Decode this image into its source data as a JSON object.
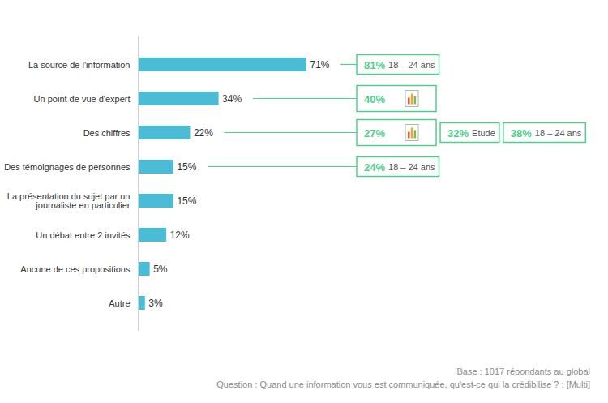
{
  "chart_data": {
    "type": "bar",
    "orientation": "horizontal",
    "categories": [
      "La source de l'information",
      "Un point de vue d'expert",
      "Des chiffres",
      "Des témoignages de personnes",
      "La présentation du sujet par un journaliste en particulier",
      "Un débat entre 2 invités",
      "Aucune de ces propositions",
      "Autre"
    ],
    "values": [
      71,
      34,
      22,
      15,
      15,
      12,
      5,
      3
    ],
    "value_labels": [
      "71%",
      "34%",
      "22%",
      "15%",
      "15%",
      "12%",
      "5%",
      "3%"
    ],
    "color": "#4bbcd5",
    "data_labels": true,
    "tick_labels": "y",
    "annotations": [
      {
        "category": "La source de l'information",
        "items": [
          {
            "value": 81,
            "label": "81%",
            "note": "18 – 24 ans"
          }
        ]
      },
      {
        "category": "Un point de vue d'expert",
        "items": [
          {
            "value": 40,
            "label": "40%"
          }
        ]
      },
      {
        "category": "Des chiffres",
        "items": [
          {
            "value": 27,
            "label": "27%"
          },
          {
            "value": 32,
            "label": "32%",
            "note": "Etude"
          },
          {
            "value": 38,
            "label": "38%",
            "note": "18 – 24 ans"
          }
        ]
      },
      {
        "category": "Des témoignages de personnes",
        "items": [
          {
            "value": 24,
            "label": "24%",
            "note": "18 – 24 ans"
          }
        ]
      }
    ],
    "footnotes": [
      "Base : 1017 répondants au global",
      "Question : Quand une information vous est communiquée, qu'est-ce qui la crédibilise ? : [Multi]"
    ]
  }
}
